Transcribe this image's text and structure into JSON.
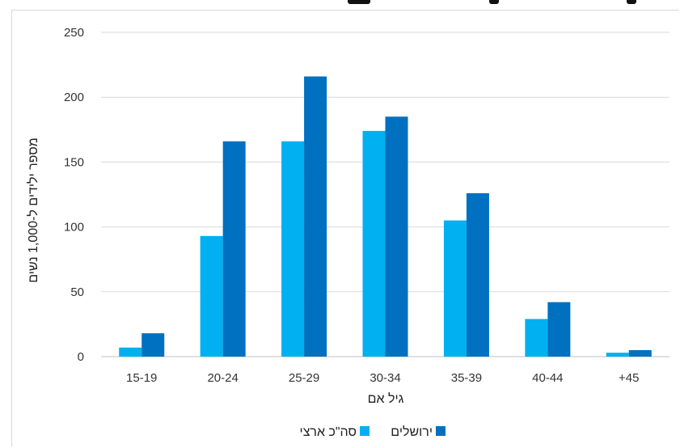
{
  "chart_data": {
    "type": "bar",
    "title": "",
    "xlabel": "גיל אם",
    "ylabel": "מספר ילידים ל-1,000 נשים",
    "ylim": [
      0,
      250
    ],
    "yticks": [
      0,
      50,
      100,
      150,
      200,
      250
    ],
    "categories": [
      "15-19",
      "20-24",
      "25-29",
      "30-34",
      "35-39",
      "40-44",
      "+45"
    ],
    "series": [
      {
        "name": "סה\"כ ארצי",
        "color": "#00b0f0",
        "values": [
          7,
          93,
          166,
          174,
          105,
          29,
          3
        ]
      },
      {
        "name": "ירושלים",
        "color": "#0070c0",
        "values": [
          18,
          166,
          216,
          185,
          126,
          42,
          5
        ]
      }
    ],
    "grid": true,
    "legend": "bottom"
  }
}
